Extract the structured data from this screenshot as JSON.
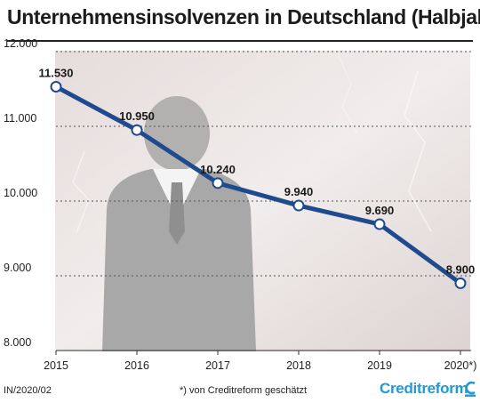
{
  "title": "Unternehmensinsolvenzen in Deutschland (Halbjahr)",
  "footer": {
    "source_code": "IN/2020/02",
    "note": "*) von Creditreform geschätzt",
    "brand": "Creditreform"
  },
  "colors": {
    "line": "#1f4b8e",
    "marker_fill": "#ffffff",
    "background_photo": "#ece7e6",
    "silhouette": "#a9a9a9",
    "brand": "#1e9ad6"
  },
  "chart_data": {
    "type": "line",
    "title": "Unternehmensinsolvenzen in Deutschland (Halbjahr)",
    "xlabel": "",
    "ylabel": "",
    "categories": [
      "2015",
      "2016",
      "2017",
      "2018",
      "2019",
      "2020*)"
    ],
    "series": [
      {
        "values": [
          11530,
          10950,
          10240,
          9940,
          9690,
          8900
        ],
        "labels": [
          "11.530",
          "10.950",
          "10.240",
          "9.940",
          "9.690",
          "8.900"
        ]
      }
    ],
    "ylim": [
      8000,
      12000
    ],
    "yticks": [
      8000,
      9000,
      10000,
      11000,
      12000
    ],
    "ytick_labels": [
      "8.000",
      "9.000",
      "10.000",
      "11.000",
      "12.000"
    ],
    "grid": true,
    "legend": "none"
  }
}
